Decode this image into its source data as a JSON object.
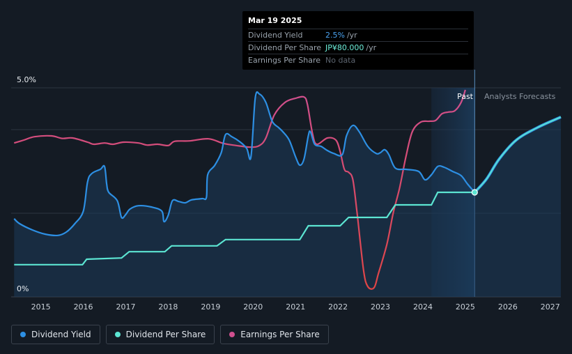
{
  "tooltip": {
    "date": "Mar 19 2025",
    "rows": [
      {
        "label": "Dividend Yield",
        "value": "2.5%",
        "unit": "/yr"
      },
      {
        "label": "Dividend Per Share",
        "value": "JP¥80.000",
        "unit": "/yr"
      },
      {
        "label": "Earnings Per Share",
        "value": "No data",
        "unit": ""
      }
    ]
  },
  "labels": {
    "past": "Past",
    "forecast": "Analysts Forecasts"
  },
  "legend": [
    {
      "label": "Dividend Yield",
      "color": "#2d8fe3"
    },
    {
      "label": "Dividend Per Share",
      "color": "#5ce5d2"
    },
    {
      "label": "Earnings Per Share",
      "color": "#d0508f"
    }
  ],
  "chart_data": {
    "type": "line",
    "y_axis_labels": [
      "5.0%",
      "0%"
    ],
    "ylim": [
      0,
      5.0
    ],
    "xlim": [
      2014.3,
      2027.25
    ],
    "x_ticks": [
      "2015",
      "2016",
      "2017",
      "2018",
      "2019",
      "2020",
      "2021",
      "2022",
      "2023",
      "2024",
      "2025",
      "2026",
      "2027"
    ],
    "past_end": 2025.22,
    "forecast_band_start": 2024.2,
    "marker": {
      "x": 2025.22,
      "y": 2.5
    },
    "series": [
      {
        "name": "Dividend Yield",
        "color": "#2d8fe3",
        "points": [
          [
            2014.37,
            1.87
          ],
          [
            2014.5,
            1.75
          ],
          [
            2014.8,
            1.6
          ],
          [
            2015.1,
            1.5
          ],
          [
            2015.4,
            1.47
          ],
          [
            2015.6,
            1.55
          ],
          [
            2015.8,
            1.75
          ],
          [
            2016.0,
            2.05
          ],
          [
            2016.1,
            2.75
          ],
          [
            2016.2,
            2.95
          ],
          [
            2016.4,
            3.05
          ],
          [
            2016.5,
            3.12
          ],
          [
            2016.55,
            2.7
          ],
          [
            2016.6,
            2.5
          ],
          [
            2016.8,
            2.3
          ],
          [
            2016.9,
            1.9
          ],
          [
            2017.0,
            1.97
          ],
          [
            2017.1,
            2.1
          ],
          [
            2017.3,
            2.18
          ],
          [
            2017.6,
            2.15
          ],
          [
            2017.85,
            2.05
          ],
          [
            2017.9,
            1.8
          ],
          [
            2018.0,
            1.95
          ],
          [
            2018.1,
            2.3
          ],
          [
            2018.25,
            2.28
          ],
          [
            2018.4,
            2.25
          ],
          [
            2018.55,
            2.32
          ],
          [
            2018.8,
            2.35
          ],
          [
            2018.9,
            2.38
          ],
          [
            2018.93,
            2.92
          ],
          [
            2019.1,
            3.15
          ],
          [
            2019.25,
            3.45
          ],
          [
            2019.35,
            3.88
          ],
          [
            2019.5,
            3.83
          ],
          [
            2019.7,
            3.7
          ],
          [
            2019.85,
            3.55
          ],
          [
            2019.95,
            3.35
          ],
          [
            2020.05,
            4.75
          ],
          [
            2020.15,
            4.85
          ],
          [
            2020.3,
            4.65
          ],
          [
            2020.45,
            4.2
          ],
          [
            2020.6,
            4.05
          ],
          [
            2020.7,
            3.95
          ],
          [
            2020.85,
            3.75
          ],
          [
            2021.0,
            3.35
          ],
          [
            2021.1,
            3.15
          ],
          [
            2021.2,
            3.3
          ],
          [
            2021.3,
            3.85
          ],
          [
            2021.35,
            3.95
          ],
          [
            2021.45,
            3.65
          ],
          [
            2021.6,
            3.6
          ],
          [
            2021.75,
            3.5
          ],
          [
            2021.9,
            3.43
          ],
          [
            2022.1,
            3.4
          ],
          [
            2022.2,
            3.85
          ],
          [
            2022.35,
            4.1
          ],
          [
            2022.5,
            3.95
          ],
          [
            2022.7,
            3.6
          ],
          [
            2022.9,
            3.43
          ],
          [
            2023.0,
            3.45
          ],
          [
            2023.1,
            3.52
          ],
          [
            2023.2,
            3.4
          ],
          [
            2023.35,
            3.08
          ],
          [
            2023.6,
            3.05
          ],
          [
            2023.9,
            3.0
          ],
          [
            2024.05,
            2.8
          ],
          [
            2024.2,
            2.92
          ],
          [
            2024.35,
            3.12
          ],
          [
            2024.5,
            3.1
          ],
          [
            2024.7,
            3.0
          ],
          [
            2024.9,
            2.9
          ],
          [
            2025.05,
            2.7
          ],
          [
            2025.22,
            2.5
          ]
        ]
      },
      {
        "name": "Dividend Yield (forecast)",
        "color": "#2d8fe3",
        "points": [
          [
            2025.22,
            2.5
          ],
          [
            2025.5,
            2.82
          ],
          [
            2025.8,
            3.3
          ],
          [
            2026.2,
            3.75
          ],
          [
            2026.7,
            4.05
          ],
          [
            2027.25,
            4.3
          ]
        ]
      },
      {
        "name": "Dividend Per Share",
        "color": "#5ce5d2",
        "points": [
          [
            2014.37,
            0.77
          ],
          [
            2015.0,
            0.77
          ],
          [
            2015.98,
            0.77
          ],
          [
            2016.08,
            0.9
          ],
          [
            2016.9,
            0.93
          ],
          [
            2017.08,
            1.08
          ],
          [
            2017.92,
            1.08
          ],
          [
            2018.08,
            1.22
          ],
          [
            2019.15,
            1.22
          ],
          [
            2019.35,
            1.37
          ],
          [
            2021.1,
            1.37
          ],
          [
            2021.3,
            1.7
          ],
          [
            2022.05,
            1.7
          ],
          [
            2022.25,
            1.9
          ],
          [
            2023.15,
            1.9
          ],
          [
            2023.35,
            2.2
          ],
          [
            2024.2,
            2.2
          ],
          [
            2024.35,
            2.5
          ],
          [
            2025.22,
            2.5
          ]
        ]
      },
      {
        "name": "Dividend Per Share (forecast)",
        "color": "#5ce5d2",
        "points": [
          [
            2025.22,
            2.5
          ],
          [
            2025.5,
            2.82
          ],
          [
            2025.8,
            3.3
          ],
          [
            2026.2,
            3.75
          ],
          [
            2026.7,
            4.05
          ],
          [
            2027.25,
            4.3
          ]
        ]
      },
      {
        "name": "Earnings Per Share",
        "color": "#d0508f",
        "points": [
          [
            2014.37,
            3.68
          ],
          [
            2014.6,
            3.75
          ],
          [
            2014.85,
            3.83
          ],
          [
            2015.25,
            3.85
          ],
          [
            2015.5,
            3.79
          ],
          [
            2015.75,
            3.8
          ],
          [
            2016.1,
            3.7
          ],
          [
            2016.25,
            3.65
          ],
          [
            2016.5,
            3.68
          ],
          [
            2016.7,
            3.65
          ],
          [
            2016.95,
            3.7
          ],
          [
            2017.3,
            3.68
          ],
          [
            2017.5,
            3.63
          ],
          [
            2017.75,
            3.65
          ],
          [
            2018.0,
            3.62
          ],
          [
            2018.15,
            3.72
          ],
          [
            2018.5,
            3.73
          ],
          [
            2018.95,
            3.78
          ],
          [
            2019.3,
            3.67
          ],
          [
            2019.6,
            3.62
          ],
          [
            2019.95,
            3.58
          ],
          [
            2020.15,
            3.62
          ],
          [
            2020.3,
            3.8
          ],
          [
            2020.5,
            4.35
          ],
          [
            2020.75,
            4.65
          ],
          [
            2021.0,
            4.75
          ],
          [
            2021.2,
            4.78
          ],
          [
            2021.28,
            4.6
          ],
          [
            2021.4,
            3.9
          ],
          [
            2021.5,
            3.65
          ],
          [
            2021.75,
            3.8
          ],
          [
            2021.95,
            3.75
          ],
          [
            2022.05,
            3.48
          ],
          [
            2022.15,
            3.05
          ],
          [
            2022.25,
            2.98
          ],
          [
            2022.35,
            2.8
          ],
          [
            2022.45,
            2.0
          ],
          [
            2022.6,
            0.65
          ],
          [
            2022.7,
            0.25
          ],
          [
            2022.85,
            0.22
          ],
          [
            2022.95,
            0.55
          ],
          [
            2023.15,
            1.25
          ],
          [
            2023.3,
            2.0
          ],
          [
            2023.45,
            2.6
          ],
          [
            2023.6,
            3.35
          ],
          [
            2023.75,
            3.95
          ],
          [
            2023.95,
            4.18
          ],
          [
            2024.15,
            4.2
          ],
          [
            2024.3,
            4.22
          ],
          [
            2024.45,
            4.38
          ],
          [
            2024.6,
            4.42
          ],
          [
            2024.75,
            4.45
          ],
          [
            2024.9,
            4.65
          ],
          [
            2025.0,
            4.95
          ]
        ]
      }
    ]
  }
}
